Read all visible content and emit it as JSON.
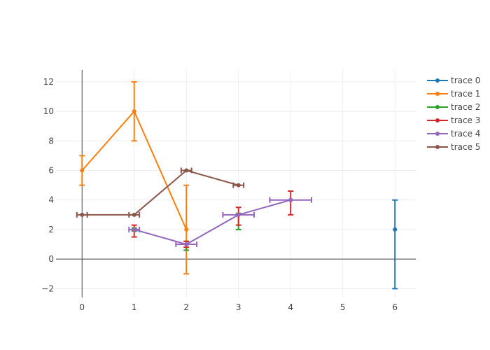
{
  "chart_data": {
    "type": "line",
    "title": "",
    "xlabel": "",
    "ylabel": "",
    "xlim": [
      -0.5,
      6.4
    ],
    "ylim": [
      -2.6,
      12.8
    ],
    "x_ticks": [
      0,
      1,
      2,
      3,
      4,
      5,
      6
    ],
    "y_ticks": [
      -2,
      0,
      2,
      4,
      6,
      8,
      10,
      12
    ],
    "grid": true,
    "legend_position": "top-right",
    "series": [
      {
        "name": "trace 0",
        "color": "#1f77b4",
        "mode": "markers",
        "points": [
          {
            "x": 6,
            "y": 2,
            "ey_plus": 2,
            "ey_minus": 4,
            "ex_plus": 0,
            "ex_minus": 0
          }
        ]
      },
      {
        "name": "trace 1",
        "color": "#ff7f0e",
        "mode": "lines+markers",
        "points": [
          {
            "x": 0,
            "y": 6,
            "ey_plus": 1,
            "ey_minus": 1,
            "ex_plus": 0,
            "ex_minus": 0
          },
          {
            "x": 1,
            "y": 10,
            "ey_plus": 2,
            "ey_minus": 2,
            "ex_plus": 0,
            "ex_minus": 0
          },
          {
            "x": 2,
            "y": 2,
            "ey_plus": 3,
            "ey_minus": 3,
            "ex_plus": 0,
            "ex_minus": 0
          }
        ]
      },
      {
        "name": "trace 2",
        "color": "#2ca02c",
        "mode": "markers",
        "points": [
          {
            "x": 1,
            "y": 2,
            "ey_plus": 0.1,
            "ey_minus": 0.1,
            "ex_plus": 0,
            "ex_minus": 0
          },
          {
            "x": 2,
            "y": 1,
            "ey_plus": 0.2,
            "ey_minus": 0.4,
            "ex_plus": 0,
            "ex_minus": 0
          },
          {
            "x": 3,
            "y": 3,
            "ey_plus": 0.1,
            "ey_minus": 1,
            "ex_plus": 0,
            "ex_minus": 0
          }
        ]
      },
      {
        "name": "trace 3",
        "color": "#d62728",
        "mode": "markers",
        "points": [
          {
            "x": 1,
            "y": 2,
            "ey_plus": 0.3,
            "ey_minus": 0.5,
            "ex_plus": 0,
            "ex_minus": 0
          },
          {
            "x": 2,
            "y": 1,
            "ey_plus": 0.2,
            "ey_minus": 0.2,
            "ex_plus": 0,
            "ex_minus": 0
          },
          {
            "x": 3,
            "y": 3,
            "ey_plus": 0.5,
            "ey_minus": 0.7,
            "ex_plus": 0,
            "ex_minus": 0
          },
          {
            "x": 4,
            "y": 4,
            "ey_plus": 0.6,
            "ey_minus": 1,
            "ex_plus": 0,
            "ex_minus": 0
          }
        ]
      },
      {
        "name": "trace 4",
        "color": "#9467bd",
        "mode": "lines+markers",
        "points": [
          {
            "x": 1,
            "y": 2,
            "ey_plus": 0,
            "ey_minus": 0,
            "ex_plus": 0.1,
            "ex_minus": 0.1
          },
          {
            "x": 2,
            "y": 1,
            "ey_plus": 0,
            "ey_minus": 0,
            "ex_plus": 0.2,
            "ex_minus": 0.2
          },
          {
            "x": 3,
            "y": 3,
            "ey_plus": 0,
            "ey_minus": 0,
            "ex_plus": 0.3,
            "ex_minus": 0.3
          },
          {
            "x": 4,
            "y": 4,
            "ey_plus": 0,
            "ey_minus": 0,
            "ex_plus": 0.4,
            "ex_minus": 0.4
          }
        ]
      },
      {
        "name": "trace 5",
        "color": "#8c564b",
        "mode": "lines+markers",
        "points": [
          {
            "x": 0,
            "y": 3,
            "ey_plus": 0,
            "ey_minus": 0,
            "ex_plus": 0.1,
            "ex_minus": 0.1
          },
          {
            "x": 1,
            "y": 3,
            "ey_plus": 0,
            "ey_minus": 0,
            "ex_plus": 0.1,
            "ex_minus": 0.1
          },
          {
            "x": 2,
            "y": 6,
            "ey_plus": 0,
            "ey_minus": 0,
            "ex_plus": 0.1,
            "ex_minus": 0.1
          },
          {
            "x": 3,
            "y": 5,
            "ey_plus": 0,
            "ey_minus": 0,
            "ex_plus": 0.1,
            "ex_minus": 0.1
          }
        ]
      }
    ]
  }
}
